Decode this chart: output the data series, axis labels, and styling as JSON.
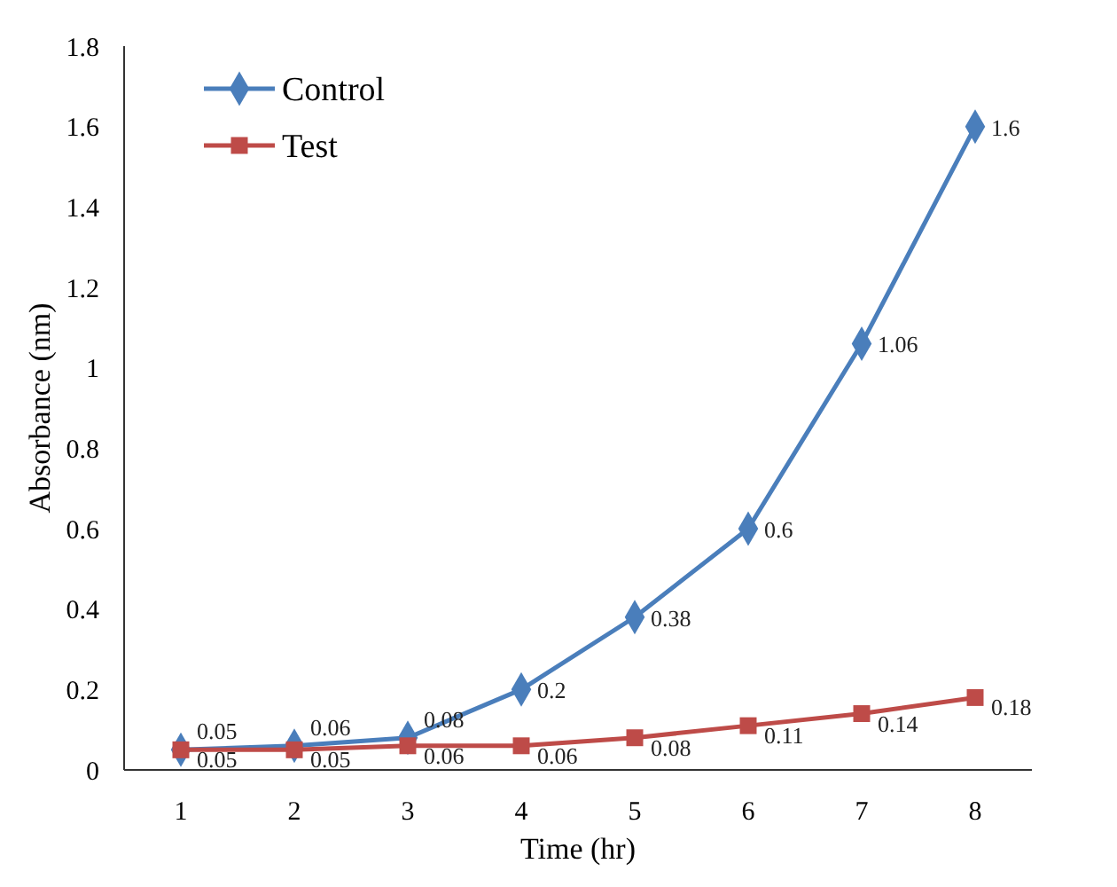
{
  "chart_data": {
    "type": "line",
    "xlabel": "Time (hr)",
    "ylabel": "Absorbance (nm)",
    "categories": [
      "1",
      "2",
      "3",
      "4",
      "5",
      "6",
      "7",
      "8"
    ],
    "series": [
      {
        "name": "Control",
        "color": "#4a7ebb",
        "marker": "diamond",
        "values": [
          0.05,
          0.06,
          0.08,
          0.2,
          0.38,
          0.6,
          1.06,
          1.6
        ]
      },
      {
        "name": "Test",
        "color": "#be4b48",
        "marker": "square",
        "values": [
          0.05,
          0.05,
          0.06,
          0.06,
          0.08,
          0.11,
          0.14,
          0.18
        ]
      }
    ],
    "ylim": [
      0,
      1.8
    ],
    "yticks": [
      0,
      0.2,
      0.4,
      0.6,
      0.8,
      1,
      1.2,
      1.4,
      1.6,
      1.8
    ],
    "grid": false,
    "legend": "top left",
    "data_labels": true
  }
}
